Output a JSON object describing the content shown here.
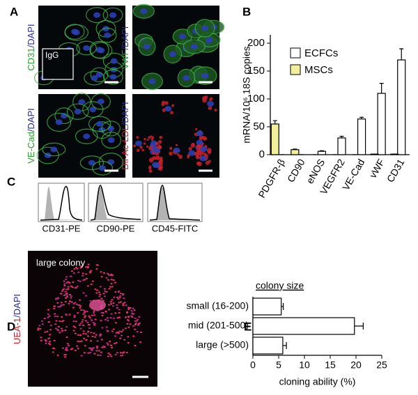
{
  "panels": {
    "a": "A",
    "b": "B",
    "c": "C",
    "d": "D",
    "e": "E"
  },
  "figure_a": {
    "images": [
      {
        "marker": "CD31",
        "counterstain": "/DAPI",
        "inset": "IgG",
        "color": "#2e9e2e"
      },
      {
        "marker": "vWF",
        "counterstain": "/DAPI",
        "color": "#2e9e2e"
      },
      {
        "marker": "VE-Cad",
        "counterstain": "/DAPI",
        "color": "#2e9e2e"
      },
      {
        "marker": "DiI-Ac-LDL",
        "counterstain": "/DAPI",
        "color": "#c8202a"
      }
    ]
  },
  "figure_c": {
    "histograms": [
      "CD31-PE",
      "CD90-PE",
      "CD45-FITC"
    ]
  },
  "figure_d": {
    "marker": "UEA-1",
    "counterstain": "/DAPI",
    "caption": "large colony"
  },
  "chart_data": [
    {
      "type": "bar",
      "ylabel": "mRNA/10⁶ 18S copies",
      "categories": [
        "PDGFR-β",
        "CD90",
        "eNOS",
        "VEGFR2",
        "VE-Cad",
        "vWF",
        "CD31"
      ],
      "series": [
        {
          "name": "ECFCs",
          "color": "#ffffff",
          "values": [
            0,
            0,
            6,
            30,
            64,
            110,
            170
          ],
          "errors": [
            0,
            0,
            1,
            3,
            3,
            18,
            20
          ]
        },
        {
          "name": "MSCs",
          "color": "#f2ef9c",
          "values": [
            55,
            9,
            0,
            0,
            0,
            1,
            1
          ],
          "errors": [
            6,
            1,
            0,
            0,
            0,
            0,
            0
          ]
        }
      ],
      "ylim": [
        0,
        215
      ],
      "yticks": [
        0,
        50,
        100,
        150,
        200
      ]
    },
    {
      "type": "barh",
      "subtitle": "colony size",
      "categories": [
        "small (16-200)",
        "mid (201-500)",
        "large (>500)"
      ],
      "values": [
        5.5,
        19.7,
        5.8
      ],
      "errors": [
        0.4,
        1.7,
        0.7
      ],
      "color": "#ffffff",
      "xlabel": "cloning ability (%)",
      "xlim": [
        0,
        25
      ],
      "xticks": [
        0,
        5,
        10,
        15,
        20,
        25
      ]
    }
  ]
}
